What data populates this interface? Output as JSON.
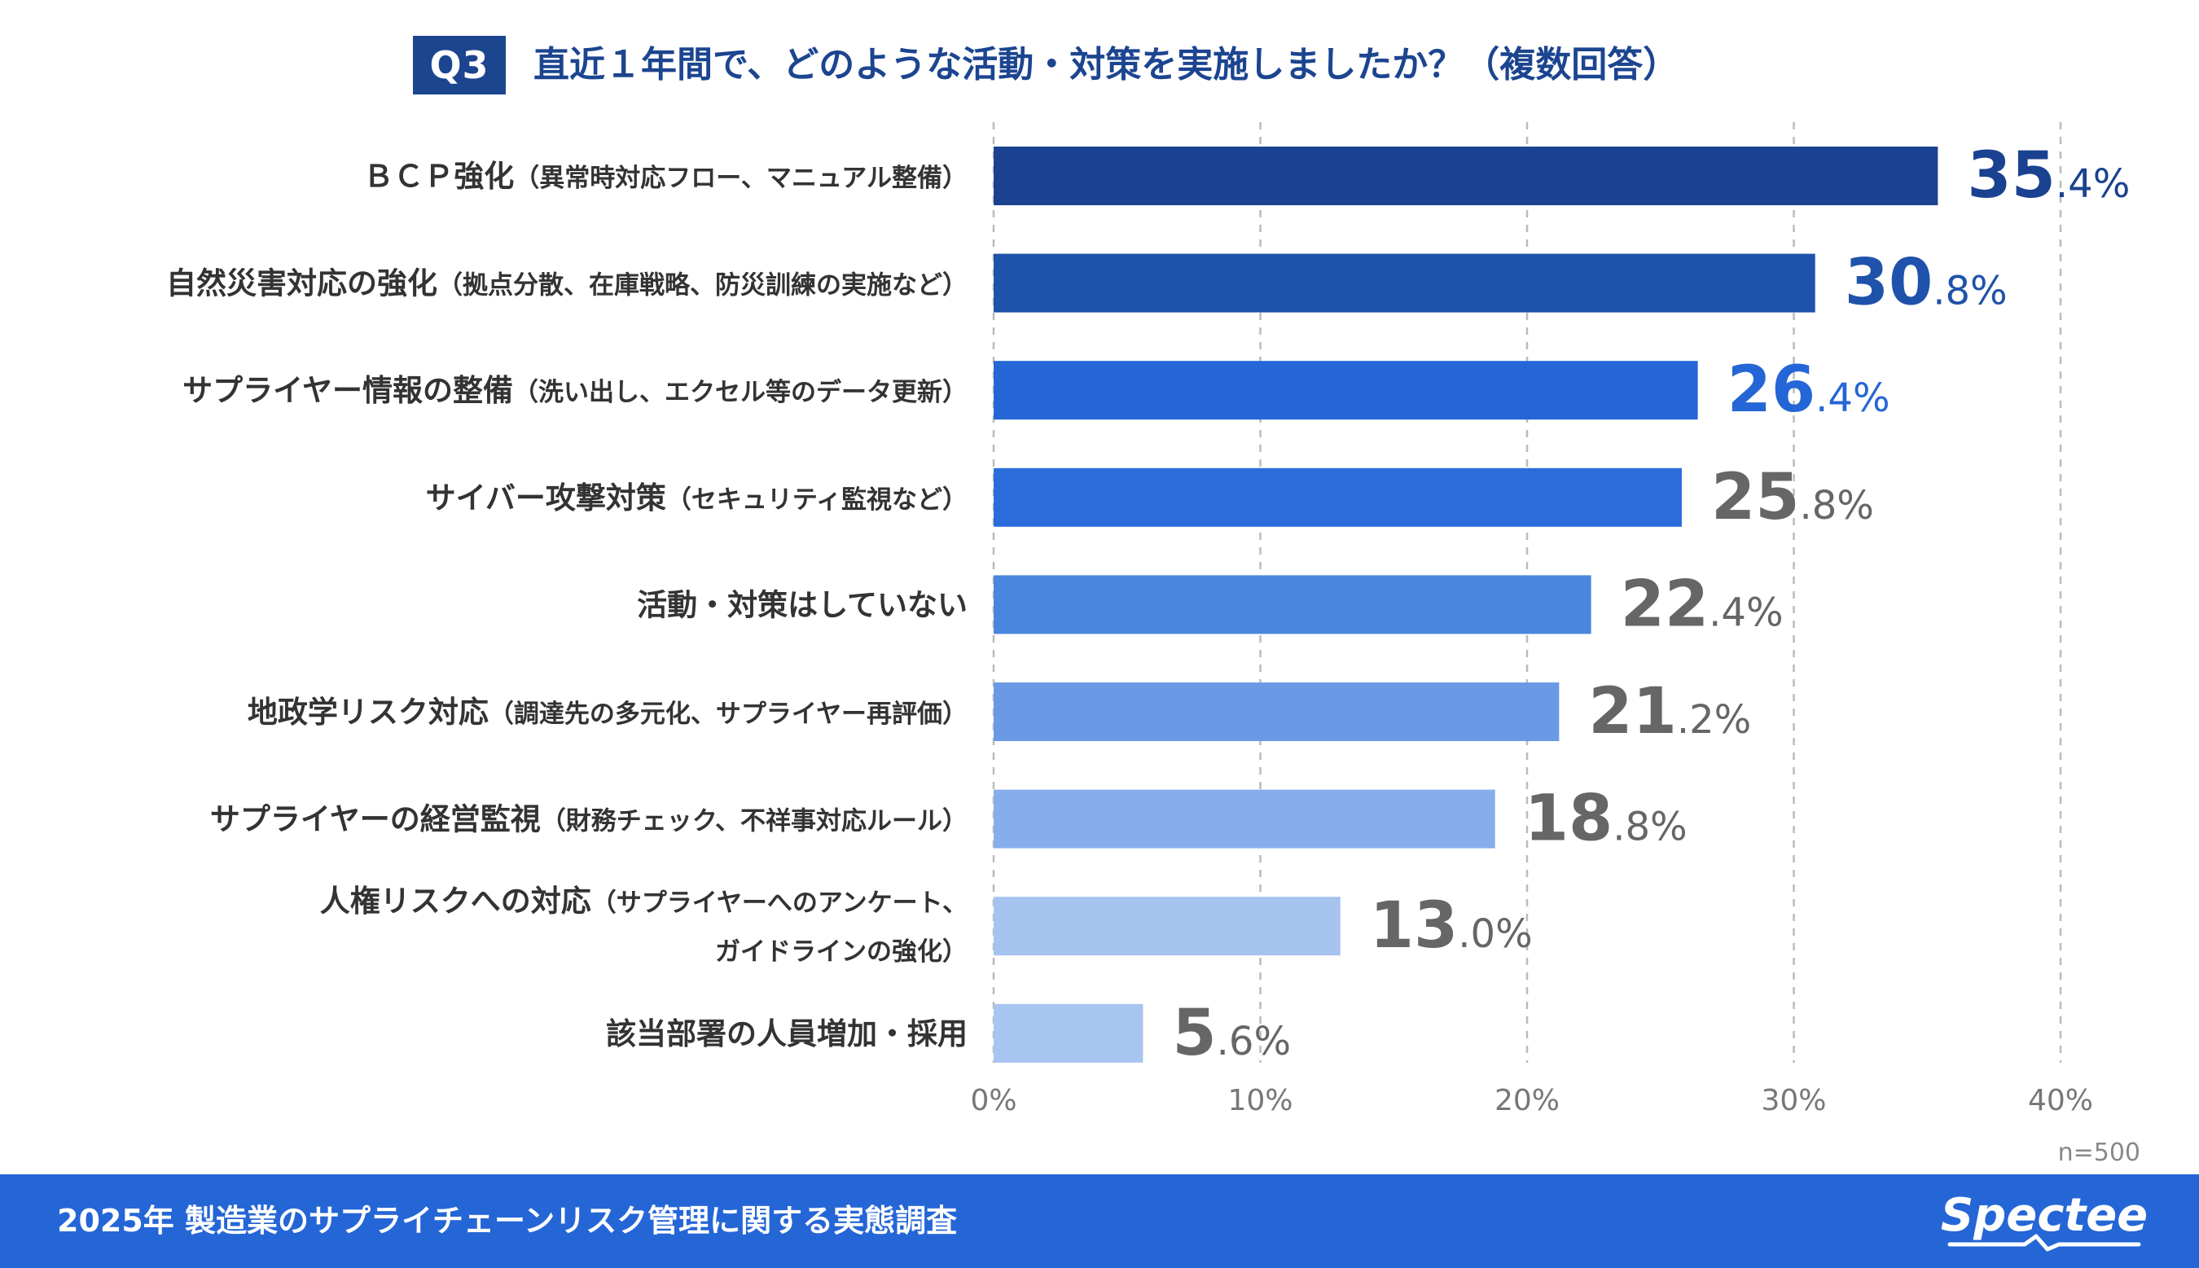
{
  "header": {
    "badge": "Q3",
    "title": "直近１年間で、どのような活動・対策を実施しましたか？（複数回答）"
  },
  "chart_data": {
    "type": "bar",
    "orientation": "horizontal",
    "title": "直近１年間で、どのような活動・対策を実施しましたか？（複数回答）",
    "xlabel": "",
    "ylabel": "",
    "xlim": [
      0,
      40
    ],
    "ticks": [
      "0%",
      "10%",
      "20%",
      "30%",
      "40%"
    ],
    "tick_values": [
      0,
      10,
      20,
      30,
      40
    ],
    "grid": true,
    "sample_note": "n=500",
    "categories": [
      {
        "main": "ＢＣＰ強化",
        "sub": "（異常時対応フロー、マニュアル整備）",
        "sub2": ""
      },
      {
        "main": "自然災害対応の強化",
        "sub": "（拠点分散、在庫戦略、防災訓練の実施など）",
        "sub2": ""
      },
      {
        "main": "サプライヤー情報の整備",
        "sub": "（洗い出し、エクセル等のデータ更新）",
        "sub2": ""
      },
      {
        "main": "サイバー攻撃対策",
        "sub": "（セキュリティ監視など）",
        "sub2": ""
      },
      {
        "main": "活動・対策はしていない",
        "sub": "",
        "sub2": ""
      },
      {
        "main": "地政学リスク対応",
        "sub": "（調達先の多元化、サプライヤー再評価）",
        "sub2": ""
      },
      {
        "main": "サプライヤーの経営監視",
        "sub": "（財務チェック、不祥事対応ルール）",
        "sub2": ""
      },
      {
        "main": "人権リスクへの対応",
        "sub": "（サプライヤーへのアンケート、",
        "sub2": "ガイドラインの強化）"
      },
      {
        "main": "該当部署の人員増加・採用",
        "sub": "",
        "sub2": ""
      }
    ],
    "values": [
      35.4,
      30.8,
      26.4,
      25.8,
      22.4,
      21.2,
      18.8,
      13.0,
      5.6
    ],
    "value_labels": [
      {
        "int": "35",
        "dec": ".4%"
      },
      {
        "int": "30",
        "dec": ".8%"
      },
      {
        "int": "26",
        "dec": ".4%"
      },
      {
        "int": "25",
        "dec": ".8%"
      },
      {
        "int": "22",
        "dec": ".4%"
      },
      {
        "int": "21",
        "dec": ".2%"
      },
      {
        "int": "18",
        "dec": ".8%"
      },
      {
        "int": "13",
        "dec": ".0%"
      },
      {
        "int": "5",
        "dec": ".6%"
      }
    ],
    "bar_colors": [
      "#1b4290",
      "#1f52aa",
      "#2566d6",
      "#2a6dda",
      "#4a85e0",
      "#6a99e6",
      "#87aeeb",
      "#a6c3f0",
      "#a8c4f0"
    ],
    "label_colors": [
      "#1b4290",
      "#1f52aa",
      "#2566d6",
      "#666666",
      "#666666",
      "#666666",
      "#666666",
      "#666666",
      "#666666"
    ]
  },
  "colors": {
    "accent": "#1c4590",
    "footer": "#2566d6",
    "grid": "#bbbbbb",
    "text": "#333333"
  },
  "footer": {
    "title": "2025年 製造業のサプライチェーンリスク管理に関する実態調査",
    "logo": "Spectee"
  }
}
